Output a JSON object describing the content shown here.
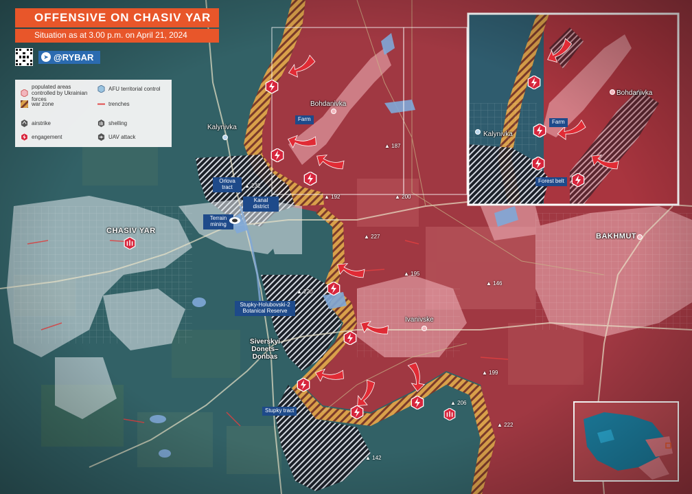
{
  "title": {
    "main": "OFFENSIVE ON CHASIV YAR",
    "subtitle": "Situation as at 3.00 p.m. on April 21, 2024"
  },
  "brand": {
    "handle": "@RYBAR",
    "icon": "telegram-icon"
  },
  "legend": {
    "ukr_populated": "populated areas controlled by Ukrainian forces",
    "afu_control": "AFU territorial control",
    "war_zone": "war zone",
    "trenches": "trenches",
    "airstrike": "airstrike",
    "shelling": "shelling",
    "engagement": "engagement",
    "uav": "UAV attack"
  },
  "places": {
    "chasiv_yar": "CHASIV YAR",
    "bakhmut": "BAKHMUT",
    "kalynivka": "Kalynivka",
    "bohdanivka": "Bohdanivka",
    "ivanivske": "Ivanivske",
    "siversky": "Siverskyi Donets–Donbas"
  },
  "tags": {
    "farm": "Farm",
    "orlova": "Orlova tract",
    "kanal": "Kanal district",
    "terrain": "Terrain mining",
    "stupky_reserve": "Stupky-Holubovski-2 Botanical Reserve",
    "stupky_tract": "Stupky tract",
    "forest_belt": "Forest belt"
  },
  "inset": {
    "kalynivka": "Kalynivka",
    "bohdanivka": "Bohdanivka",
    "farm": "Farm"
  },
  "heights": {
    "h187": "187",
    "h192": "192",
    "h200": "200",
    "h227": "227",
    "h195": "195",
    "h146": "146",
    "h199": "199",
    "h206": "206",
    "h222": "222",
    "h142": "142",
    "h232": "232",
    "h220": "220"
  },
  "colors": {
    "russian": "#a9353f",
    "ukrainian": "#2f5c6e",
    "war_zone": "#f2a53a",
    "accent": "#e8562a",
    "brand": "#2b6bb0"
  }
}
